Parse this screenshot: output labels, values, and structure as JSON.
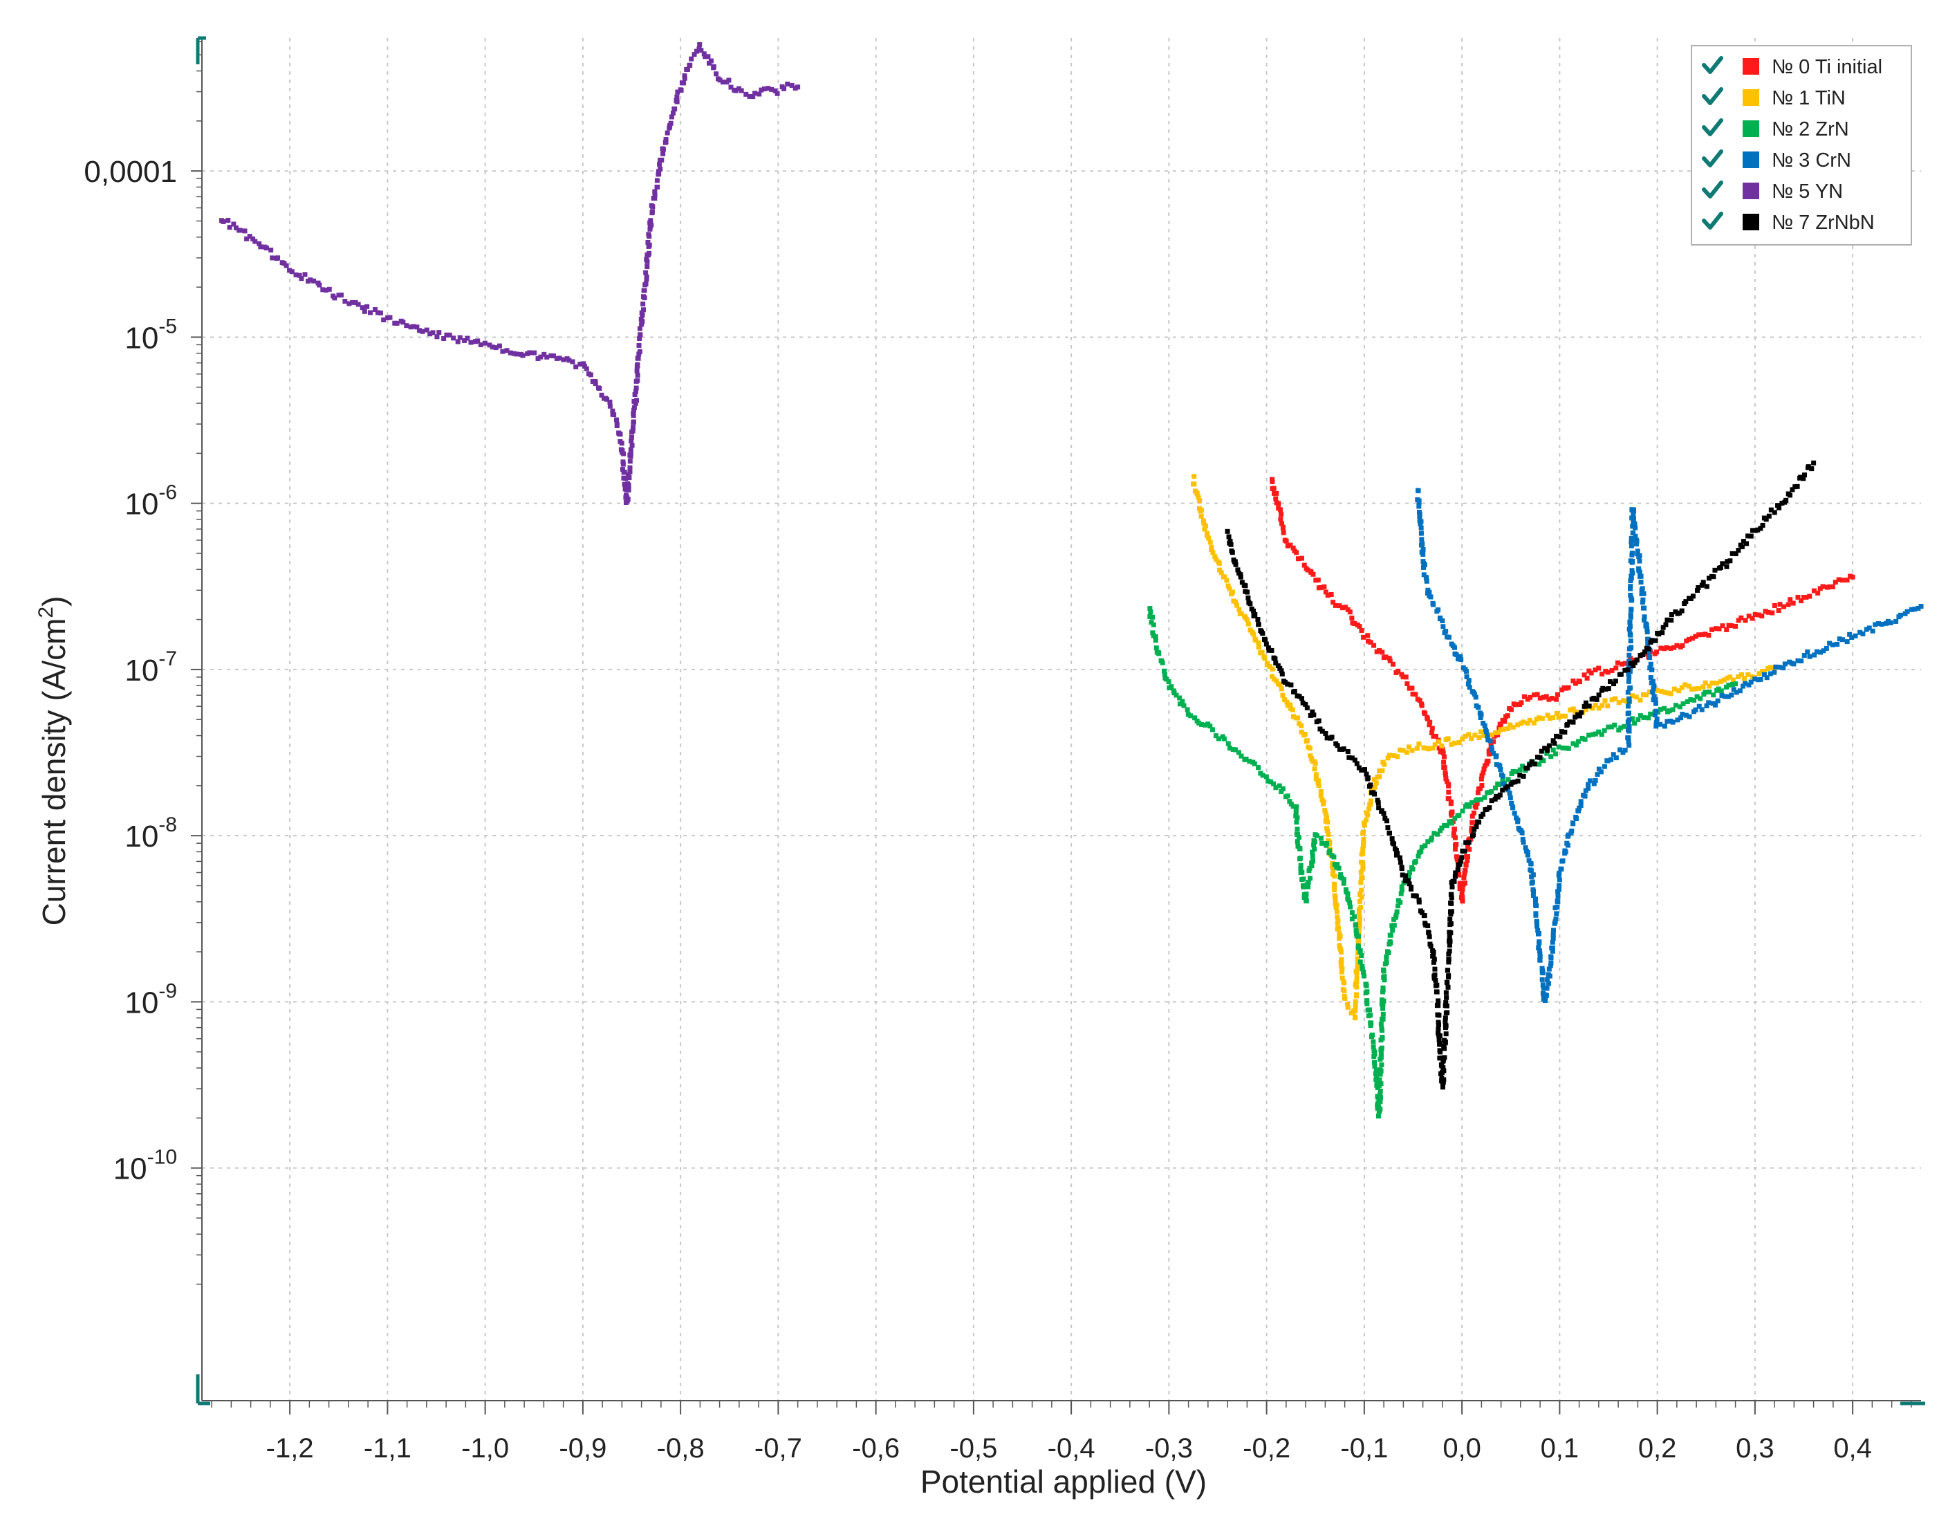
{
  "chart_data": {
    "type": "scatter",
    "xlabel": "Potential applied (V)",
    "ylabel": "Current density (A/cm",
    "ylabel_sup": "2",
    "ylabel_end": ")",
    "xlim": [
      -1.29,
      0.47
    ],
    "ylog_range": [
      -11.4,
      -3.2
    ],
    "yscale": "log",
    "grid": true,
    "legend_position": "top-right",
    "x_ticks": [
      {
        "v": -1.2,
        "label": "-1,2"
      },
      {
        "v": -1.1,
        "label": "-1,1"
      },
      {
        "v": -1.0,
        "label": "-1,0"
      },
      {
        "v": -0.9,
        "label": "-0,9"
      },
      {
        "v": -0.8,
        "label": "-0,8"
      },
      {
        "v": -0.7,
        "label": "-0,7"
      },
      {
        "v": -0.6,
        "label": "-0,6"
      },
      {
        "v": -0.5,
        "label": "-0,5"
      },
      {
        "v": -0.4,
        "label": "-0,4"
      },
      {
        "v": -0.3,
        "label": "-0,3"
      },
      {
        "v": -0.2,
        "label": "-0,2"
      },
      {
        "v": -0.1,
        "label": "-0,1"
      },
      {
        "v": 0.0,
        "label": "0,0"
      },
      {
        "v": 0.1,
        "label": "0,1"
      },
      {
        "v": 0.2,
        "label": "0,2"
      },
      {
        "v": 0.3,
        "label": "0,3"
      },
      {
        "v": 0.4,
        "label": "0,4"
      }
    ],
    "y_ticks": [
      {
        "exp": -4,
        "main": "0,0001",
        "sup": ""
      },
      {
        "exp": -5,
        "main": "10",
        "sup": "-5"
      },
      {
        "exp": -6,
        "main": "10",
        "sup": "-6"
      },
      {
        "exp": -7,
        "main": "10",
        "sup": "-7"
      },
      {
        "exp": -8,
        "main": "10",
        "sup": "-8"
      },
      {
        "exp": -9,
        "main": "10",
        "sup": "-9"
      },
      {
        "exp": -10,
        "main": "10",
        "sup": "-10"
      }
    ],
    "series": [
      {
        "name": "№ 0 Ti initial",
        "color": "#ff1a1a",
        "x": [
          -0.195,
          -0.18,
          -0.16,
          -0.14,
          -0.12,
          -0.1,
          -0.08,
          -0.06,
          -0.04,
          -0.03,
          -0.02,
          -0.01,
          0.0,
          0.01,
          0.03,
          0.05,
          0.07,
          0.09,
          0.11,
          0.13,
          0.15,
          0.2,
          0.25,
          0.3,
          0.35,
          0.4
        ],
        "y": [
          1.4e-06,
          6e-07,
          4.2e-07,
          2.9e-07,
          2.3e-07,
          1.6e-07,
          1.2e-07,
          9e-08,
          6e-08,
          4.2e-08,
          3.2e-08,
          1.3e-08,
          4e-09,
          1.2e-08,
          3.5e-08,
          6e-08,
          7e-08,
          6.5e-08,
          8e-08,
          9.5e-08,
          1e-07,
          1.3e-07,
          1.6e-07,
          2.1e-07,
          2.7e-07,
          3.6e-07
        ]
      },
      {
        "name": "№ 1 TiN",
        "color": "#ffc000",
        "x": [
          -0.275,
          -0.26,
          -0.24,
          -0.22,
          -0.2,
          -0.18,
          -0.16,
          -0.15,
          -0.14,
          -0.13,
          -0.12,
          -0.11,
          -0.1,
          -0.09,
          -0.08,
          -0.07,
          -0.05,
          -0.03,
          0.0,
          0.05,
          0.1,
          0.15,
          0.2,
          0.25,
          0.3,
          0.32
        ],
        "y": [
          1.4e-06,
          6e-07,
          3.2e-07,
          1.9e-07,
          1.1e-07,
          6.5e-08,
          4e-08,
          2.5e-08,
          1.4e-08,
          5e-09,
          1e-09,
          8e-10,
          1.2e-08,
          2e-08,
          2.8e-08,
          3e-08,
          3.4e-08,
          3.5e-08,
          3.8e-08,
          4.5e-08,
          5.3e-08,
          6.3e-08,
          7.2e-08,
          8.2e-08,
          9.2e-08,
          1e-07
        ]
      },
      {
        "name": "№ 2 ZrN",
        "color": "#00b050",
        "x": [
          -0.32,
          -0.31,
          -0.3,
          -0.28,
          -0.26,
          -0.24,
          -0.22,
          -0.2,
          -0.18,
          -0.17,
          -0.165,
          -0.16,
          -0.15,
          -0.14,
          -0.13,
          -0.12,
          -0.11,
          -0.1,
          -0.09,
          -0.085,
          -0.08,
          -0.07,
          -0.06,
          -0.04,
          -0.02,
          0.0,
          0.05,
          0.1,
          0.15,
          0.2,
          0.25,
          0.28
        ],
        "y": [
          2.3e-07,
          1.2e-07,
          8e-08,
          5.5e-08,
          4.5e-08,
          3.6e-08,
          2.9e-08,
          2.3e-08,
          1.8e-08,
          1.5e-08,
          6e-09,
          4e-09,
          1e-08,
          9e-09,
          7e-09,
          5e-09,
          3e-09,
          1.4e-09,
          5e-10,
          2e-10,
          1.5e-09,
          3e-09,
          5e-09,
          8.5e-09,
          1.1e-08,
          1.4e-08,
          2.3e-08,
          3.3e-08,
          4.3e-08,
          5.5e-08,
          7e-08,
          8.2e-08
        ]
      },
      {
        "name": "№ 3 CrN",
        "color": "#0070c0",
        "x": [
          -0.045,
          -0.04,
          -0.035,
          -0.03,
          -0.02,
          -0.01,
          0.0,
          0.01,
          0.02,
          0.03,
          0.04,
          0.05,
          0.06,
          0.07,
          0.075,
          0.08,
          0.085,
          0.09,
          0.1,
          0.11,
          0.12,
          0.13,
          0.15,
          0.17,
          0.175,
          0.2,
          0.25,
          0.3,
          0.35,
          0.4,
          0.45,
          0.47
        ],
        "y": [
          1.2e-06,
          4.5e-07,
          3e-07,
          2.5e-07,
          1.9e-07,
          1.4e-07,
          1.1e-07,
          7.5e-08,
          5e-08,
          3.5e-08,
          2.4e-08,
          1.6e-08,
          1.1e-08,
          7e-09,
          4e-09,
          2e-09,
          1e-09,
          1.5e-09,
          6e-09,
          1e-08,
          1.5e-08,
          2e-08,
          2.8e-08,
          3.5e-08,
          9.5e-07,
          4.5e-08,
          6e-08,
          8.5e-08,
          1.2e-07,
          1.6e-07,
          2.1e-07,
          2.4e-07
        ]
      },
      {
        "name": "№ 5 YN",
        "color": "#7030a0",
        "x": [
          -1.27,
          -1.25,
          -1.22,
          -1.2,
          -1.15,
          -1.1,
          -1.05,
          -1.0,
          -0.95,
          -0.92,
          -0.9,
          -0.89,
          -0.88,
          -0.87,
          -0.865,
          -0.86,
          -0.855,
          -0.85,
          -0.845,
          -0.84,
          -0.835,
          -0.83,
          -0.82,
          -0.81,
          -0.8,
          -0.79,
          -0.78,
          -0.77,
          -0.76,
          -0.75,
          -0.74,
          -0.73,
          -0.72,
          -0.71,
          -0.7,
          -0.69,
          -0.68
        ],
        "y": [
          5.2e-05,
          4.3e-05,
          3.2e-05,
          2.6e-05,
          1.75e-05,
          1.3e-05,
          1.05e-05,
          9e-06,
          7.8e-06,
          7.2e-06,
          6.7e-06,
          5.5e-06,
          4.6e-06,
          3.6e-06,
          3e-06,
          2.2e-06,
          1e-06,
          2.5e-06,
          5e-06,
          1.2e-05,
          2.5e-05,
          5.5e-05,
          0.000115,
          0.0002,
          0.00032,
          0.00045,
          0.00056,
          0.00046,
          0.00036,
          0.00034,
          0.0003,
          0.00029,
          0.00029,
          0.00031,
          0.0003,
          0.00032,
          0.00032
        ]
      },
      {
        "name": "№ 7 ZrNbN",
        "color": "#000000",
        "x": [
          -0.24,
          -0.23,
          -0.22,
          -0.21,
          -0.2,
          -0.19,
          -0.18,
          -0.16,
          -0.14,
          -0.12,
          -0.1,
          -0.09,
          -0.08,
          -0.07,
          -0.06,
          -0.05,
          -0.04,
          -0.03,
          -0.025,
          -0.02,
          -0.01,
          0.0,
          0.01,
          0.02,
          0.04,
          0.06,
          0.08,
          0.1,
          0.12,
          0.15,
          0.18,
          0.2,
          0.22,
          0.25,
          0.28,
          0.3,
          0.33,
          0.36
        ],
        "y": [
          6.5e-07,
          4e-07,
          2.8e-07,
          2e-07,
          1.4e-07,
          1.1e-07,
          8.5e-08,
          6e-08,
          4.2e-08,
          3.2e-08,
          2.4e-08,
          1.8e-08,
          1.3e-08,
          9e-09,
          6e-09,
          4.5e-09,
          3.5e-09,
          2e-09,
          1e-09,
          3e-10,
          5e-09,
          8e-09,
          1e-08,
          1.3e-08,
          1.8e-08,
          2.3e-08,
          3e-08,
          4e-08,
          5.5e-08,
          8e-08,
          1.15e-07,
          1.6e-07,
          2.2e-07,
          3.3e-07,
          5e-07,
          6.8e-07,
          1.05e-06,
          1.75e-06
        ]
      }
    ]
  }
}
